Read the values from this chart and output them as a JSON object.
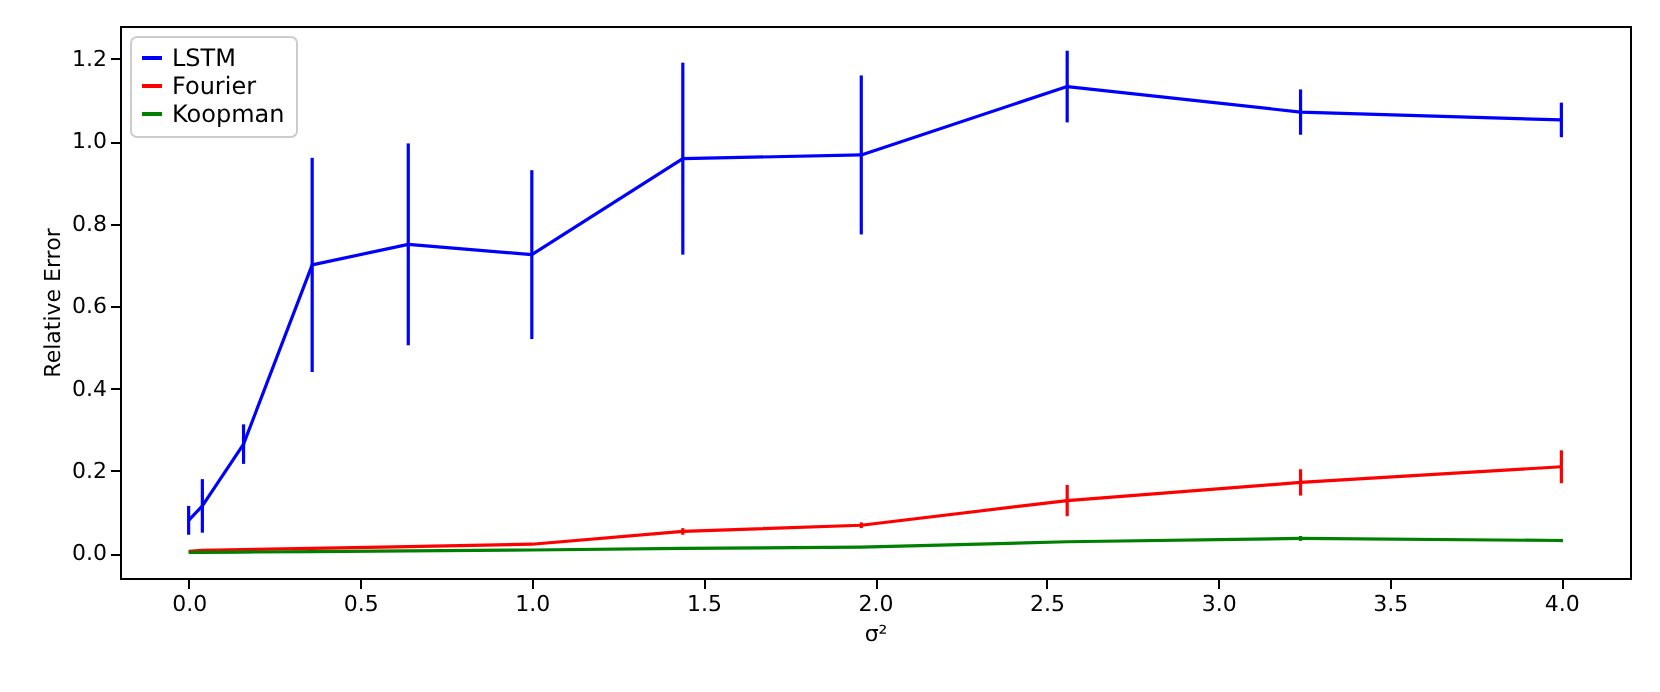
{
  "chart_data": {
    "type": "line",
    "xlabel": "σ²",
    "ylabel": "Relative Error",
    "x": [
      0,
      0.04,
      0.16,
      0.36,
      0.64,
      1.0,
      1.44,
      1.96,
      2.56,
      3.24,
      4.0
    ],
    "series": [
      {
        "name": "LSTM",
        "color": "#0000ff",
        "values": [
          0.08,
          0.115,
          0.265,
          0.7,
          0.75,
          0.725,
          0.958,
          0.967,
          1.133,
          1.071,
          1.052
        ],
        "errors": [
          0.035,
          0.065,
          0.048,
          0.26,
          0.245,
          0.205,
          0.233,
          0.193,
          0.087,
          0.055,
          0.042
        ]
      },
      {
        "name": "Fourier",
        "color": "#ff0000",
        "values": [
          0.005,
          0.007,
          0.009,
          0.012,
          0.016,
          0.022,
          0.053,
          0.068,
          0.128,
          0.172,
          0.21
        ],
        "errors": [
          null,
          null,
          null,
          null,
          null,
          null,
          0.008,
          0.007,
          0.038,
          0.032,
          0.04
        ]
      },
      {
        "name": "Koopman",
        "color": "#008000",
        "values": [
          0.002,
          0.002,
          0.003,
          0.004,
          0.006,
          0.008,
          0.012,
          0.015,
          0.028,
          0.036,
          0.031
        ],
        "errors": [
          null,
          null,
          null,
          null,
          null,
          null,
          null,
          null,
          null,
          0.006,
          0.004
        ]
      }
    ],
    "xlim": [
      -0.2,
      4.2
    ],
    "xticks": [
      {
        "value": 0,
        "label": "0.0"
      },
      0.5,
      {
        "value": 1,
        "label": "1.0"
      },
      1.5,
      {
        "value": 2,
        "label": "2.0"
      },
      2.5,
      {
        "value": 3,
        "label": "3.0"
      },
      3.5,
      {
        "value": 4,
        "label": "4.0"
      }
    ],
    "ylim": [
      -0.06,
      1.28
    ],
    "yticks": [
      {
        "value": 0,
        "label": "0.0"
      },
      0.2,
      0.4,
      0.6,
      0.8,
      {
        "value": 1,
        "label": "1.0"
      },
      1.2
    ],
    "grid": false,
    "legend": "top left",
    "marker": "none",
    "line_style": "solid"
  }
}
